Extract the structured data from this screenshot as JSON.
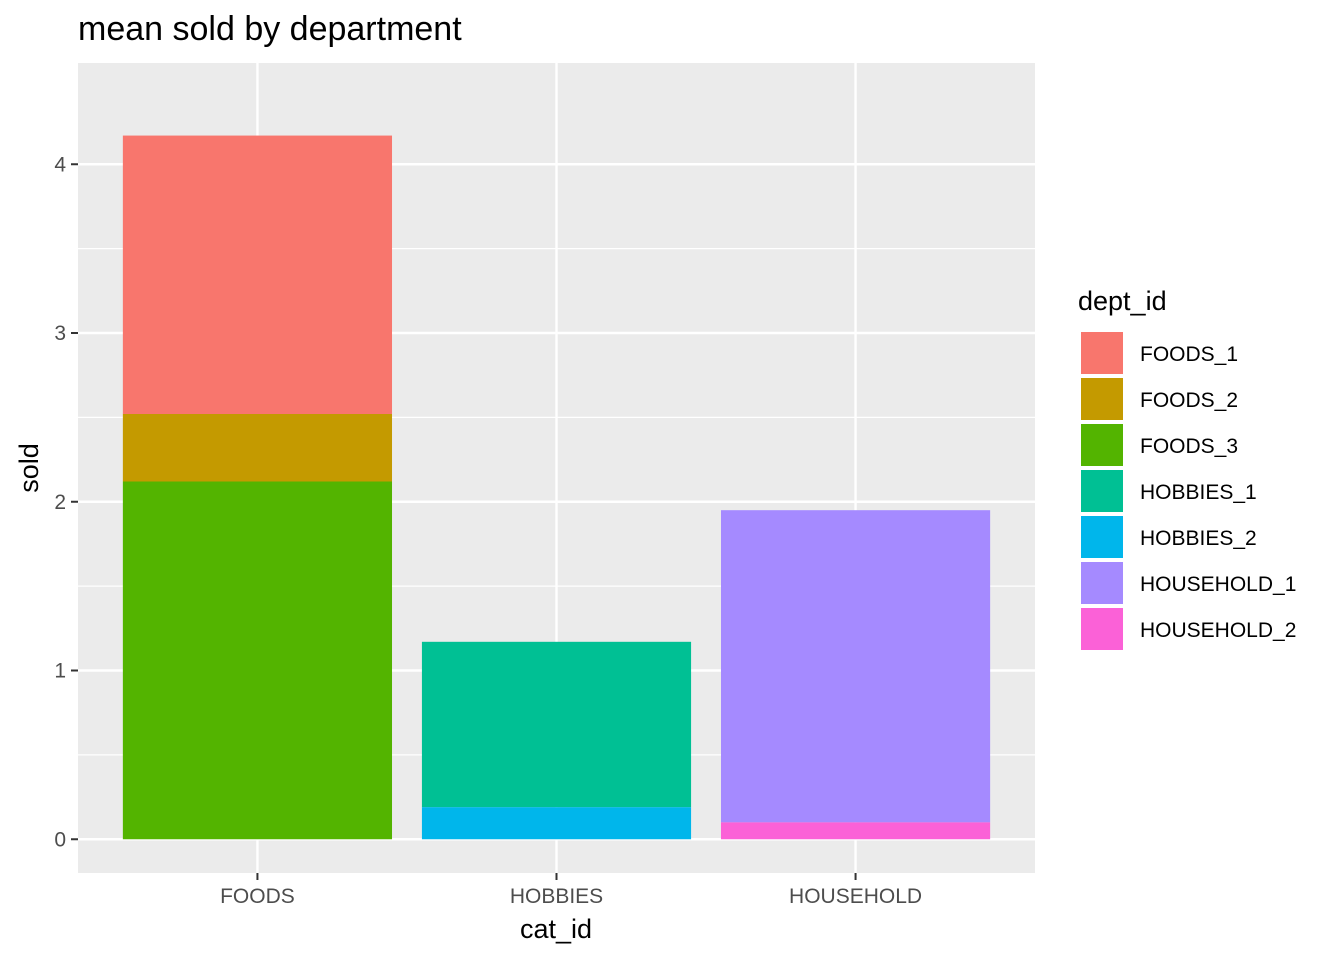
{
  "chart_data": {
    "type": "bar",
    "stacked": true,
    "title": "mean sold by department",
    "xlabel": "cat_id",
    "ylabel": "sold",
    "categories": [
      "FOODS",
      "HOBBIES",
      "HOUSEHOLD"
    ],
    "ylim": [
      -0.2,
      4.6
    ],
    "yticks": [
      0,
      1,
      2,
      3,
      4
    ],
    "grid": true,
    "legend": {
      "title": "dept_id",
      "position": "right"
    },
    "series": [
      {
        "name": "FOODS_1",
        "color": "#F8766D",
        "category": "FOODS",
        "base": 2.52,
        "value": 1.65
      },
      {
        "name": "FOODS_2",
        "color": "#C49A00",
        "category": "FOODS",
        "base": 2.12,
        "value": 0.4
      },
      {
        "name": "FOODS_3",
        "color": "#53B400",
        "category": "FOODS",
        "base": 0,
        "value": 2.12
      },
      {
        "name": "HOBBIES_1",
        "color": "#00C094",
        "category": "HOBBIES",
        "base": 0.19,
        "value": 0.98
      },
      {
        "name": "HOBBIES_2",
        "color": "#00B6EB",
        "category": "HOBBIES",
        "base": 0,
        "value": 0.19
      },
      {
        "name": "HOUSEHOLD_1",
        "color": "#A58AFF",
        "category": "HOUSEHOLD",
        "base": 0.1,
        "value": 1.85
      },
      {
        "name": "HOUSEHOLD_2",
        "color": "#FB61D7",
        "category": "HOUSEHOLD",
        "base": 0,
        "value": 0.1
      }
    ]
  }
}
